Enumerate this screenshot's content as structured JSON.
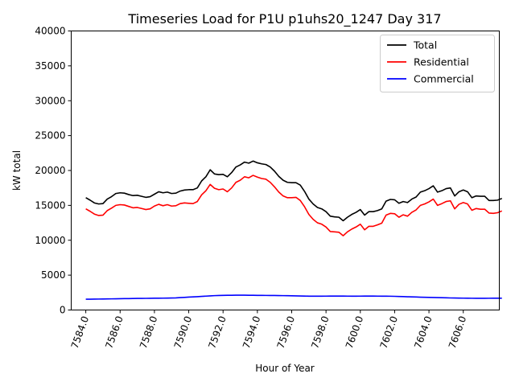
{
  "chart_data": {
    "type": "line",
    "title": "Timeseries Load for P1U p1uhs20_1247  Day 317",
    "xlabel": "Hour of Year",
    "ylabel": "kW total",
    "xlim": [
      7583.15,
      7608.1
    ],
    "ylim": [
      0,
      40000
    ],
    "grid": false,
    "legend_position": "top-right",
    "x_ticks": [
      7584,
      7586,
      7588,
      7590,
      7592,
      7594,
      7596,
      7598,
      7600,
      7602,
      7604,
      7606
    ],
    "x_tick_labels": [
      "7584.0",
      "7586.0",
      "7588.0",
      "7590.0",
      "7592.0",
      "7594.0",
      "7596.0",
      "7598.0",
      "7600.0",
      "7602.0",
      "7604.0",
      "7606.0"
    ],
    "y_ticks": [
      0,
      5000,
      10000,
      15000,
      20000,
      25000,
      30000,
      35000,
      40000
    ],
    "y_tick_labels": [
      "0",
      "5000",
      "10000",
      "15000",
      "20000",
      "25000",
      "30000",
      "35000",
      "40000"
    ],
    "x_start": 7584.0,
    "x_step": 0.25,
    "series": [
      {
        "name": "Total",
        "color": "#000000",
        "values": [
          16100,
          15750,
          15350,
          15200,
          15250,
          15900,
          16250,
          16700,
          16800,
          16750,
          16550,
          16400,
          16450,
          16300,
          16150,
          16250,
          16600,
          16950,
          16800,
          16900,
          16700,
          16750,
          17050,
          17200,
          17250,
          17250,
          17500,
          18500,
          19100,
          20100,
          19500,
          19400,
          19450,
          19100,
          19700,
          20500,
          20800,
          21200,
          21050,
          21350,
          21100,
          20950,
          20850,
          20500,
          19900,
          19150,
          18600,
          18300,
          18250,
          18250,
          17900,
          17000,
          15900,
          15200,
          14700,
          14500,
          14100,
          13450,
          13350,
          13300,
          12800,
          13300,
          13700,
          14000,
          14400,
          13600,
          14100,
          14100,
          14250,
          14500,
          15600,
          15850,
          15800,
          15300,
          15550,
          15400,
          15900,
          16200,
          16900,
          17100,
          17400,
          17800,
          16900,
          17100,
          17400,
          17500,
          16350,
          16950,
          17200,
          16950,
          16100,
          16350,
          16300,
          16300,
          15700,
          15700,
          15750,
          16000
        ]
      },
      {
        "name": "Residential",
        "color": "#ff0000",
        "values": [
          14500,
          14150,
          13750,
          13550,
          13600,
          14250,
          14600,
          15000,
          15100,
          15050,
          14850,
          14650,
          14700,
          14550,
          14400,
          14500,
          14900,
          15150,
          14950,
          15100,
          14900,
          14950,
          15250,
          15350,
          15300,
          15250,
          15550,
          16500,
          17100,
          18000,
          17450,
          17250,
          17350,
          16950,
          17500,
          18300,
          18600,
          19100,
          18950,
          19300,
          19050,
          18850,
          18750,
          18300,
          17650,
          16900,
          16350,
          16100,
          16100,
          16150,
          15700,
          14800,
          13700,
          13000,
          12500,
          12300,
          11900,
          11250,
          11200,
          11150,
          10650,
          11200,
          11600,
          11900,
          12300,
          11500,
          12000,
          12000,
          12200,
          12450,
          13600,
          13850,
          13800,
          13300,
          13650,
          13450,
          14000,
          14350,
          15000,
          15200,
          15500,
          15900,
          15000,
          15250,
          15550,
          15650,
          14500,
          15150,
          15400,
          15200,
          14300,
          14550,
          14450,
          14450,
          13900,
          13850,
          13950,
          14200
        ]
      },
      {
        "name": "Commercial",
        "color": "#0000ff",
        "values": [
          1550,
          1550,
          1560,
          1570,
          1580,
          1590,
          1600,
          1610,
          1620,
          1630,
          1640,
          1650,
          1660,
          1665,
          1670,
          1680,
          1690,
          1695,
          1700,
          1710,
          1720,
          1740,
          1780,
          1810,
          1850,
          1880,
          1910,
          1950,
          1990,
          2030,
          2060,
          2080,
          2100,
          2110,
          2115,
          2120,
          2120,
          2120,
          2115,
          2110,
          2100,
          2095,
          2090,
          2085,
          2080,
          2070,
          2060,
          2050,
          2040,
          2030,
          2010,
          1995,
          1985,
          1980,
          1980,
          1985,
          1990,
          1995,
          2000,
          2000,
          1995,
          1990,
          1985,
          1985,
          1990,
          1995,
          2000,
          1995,
          1990,
          1985,
          1980,
          1975,
          1960,
          1940,
          1920,
          1900,
          1880,
          1860,
          1840,
          1820,
          1805,
          1790,
          1775,
          1760,
          1745,
          1730,
          1720,
          1710,
          1700,
          1690,
          1685,
          1680,
          1680,
          1680,
          1685,
          1690,
          1690,
          1690
        ]
      }
    ]
  }
}
